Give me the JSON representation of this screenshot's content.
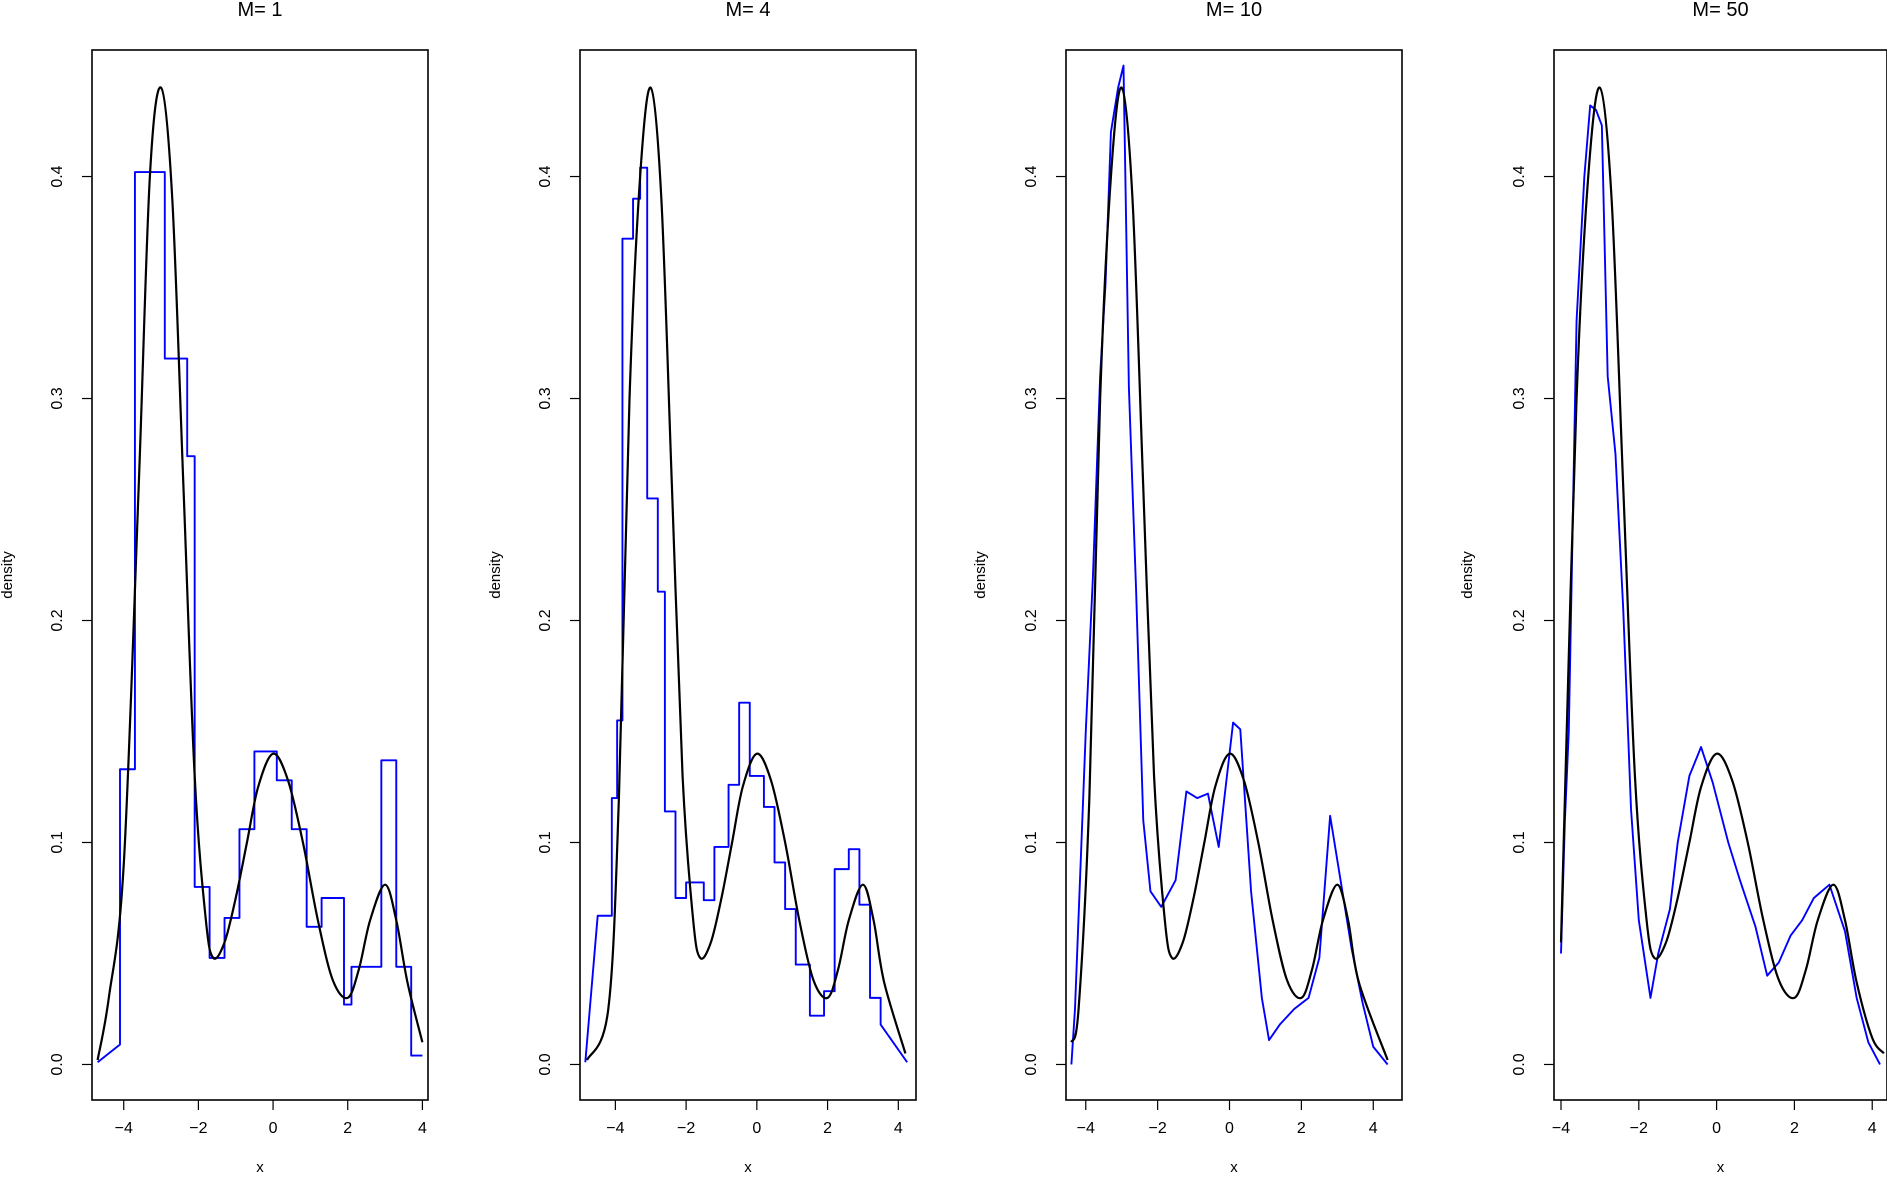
{
  "chart_data": [
    {
      "type": "line",
      "title": "M= 1",
      "xlabel": "x",
      "ylabel": "density",
      "xlim": [
        -4.85,
        4.15
      ],
      "ylim": [
        -0.016,
        0.457
      ],
      "xticks": [
        -4,
        -2,
        0,
        2,
        4
      ],
      "yticks": [
        0.0,
        0.1,
        0.2,
        0.3,
        0.4
      ],
      "x_tick_labels": [
        "−4",
        "−2",
        "0",
        "2",
        "4"
      ],
      "y_tick_labels": [
        "0.0",
        "0.1",
        "0.2",
        "0.3",
        "0.4"
      ],
      "grid": false,
      "colors": {
        "true_density": "#000000",
        "estimate": "#0000ff"
      },
      "series": [
        {
          "style": "step",
          "x": [
            -4.7,
            -4.1,
            -4.1,
            -3.7,
            -3.7,
            -3.3,
            -3.3,
            -2.9,
            -2.9,
            -2.7,
            -2.7,
            -2.3,
            -2.3,
            -2.1,
            -2.1,
            -1.7,
            -1.7,
            -1.3,
            -1.3,
            -0.9,
            -0.9,
            -0.5,
            -0.5,
            0.1,
            0.1,
            0.5,
            0.5,
            0.9,
            0.9,
            1.3,
            1.3,
            1.9,
            1.9,
            2.1,
            2.1,
            2.9,
            2.9,
            3.3,
            3.3,
            3.7,
            3.7,
            4.0
          ],
          "y": [
            0.001,
            0.009,
            0.133,
            0.133,
            0.402,
            0.402,
            0.402,
            0.402,
            0.318,
            0.318,
            0.318,
            0.318,
            0.274,
            0.274,
            0.08,
            0.08,
            0.048,
            0.048,
            0.066,
            0.066,
            0.106,
            0.106,
            0.141,
            0.141,
            0.128,
            0.128,
            0.106,
            0.106,
            0.062,
            0.062,
            0.075,
            0.075,
            0.027,
            0.027,
            0.044,
            0.044,
            0.137,
            0.137,
            0.044,
            0.044,
            0.004,
            0.004
          ]
        },
        {
          "style": "smooth",
          "x": [
            -4.7,
            -4.4,
            -4.0,
            -3.6,
            -3.3,
            -3.0,
            -2.7,
            -2.4,
            -2.1,
            -1.8,
            -1.6,
            -1.3,
            -1.0,
            -0.7,
            -0.4,
            0.0,
            0.4,
            0.8,
            1.2,
            1.6,
            2.0,
            2.3,
            2.6,
            3.0,
            3.3,
            3.6,
            4.0
          ],
          "y": [
            0.002,
            0.03,
            0.09,
            0.26,
            0.4,
            0.44,
            0.39,
            0.26,
            0.13,
            0.065,
            0.048,
            0.055,
            0.075,
            0.1,
            0.125,
            0.14,
            0.128,
            0.1,
            0.065,
            0.038,
            0.03,
            0.043,
            0.065,
            0.081,
            0.065,
            0.037,
            0.01
          ]
        }
      ]
    },
    {
      "type": "line",
      "title": "M= 4",
      "xlabel": "x",
      "ylabel": "density",
      "xlim": [
        -5.0,
        4.5
      ],
      "ylim": [
        -0.016,
        0.457
      ],
      "xticks": [
        -4,
        -2,
        0,
        2,
        4
      ],
      "yticks": [
        0.0,
        0.1,
        0.2,
        0.3,
        0.4
      ],
      "x_tick_labels": [
        "−4",
        "−2",
        "0",
        "2",
        "4"
      ],
      "y_tick_labels": [
        "0.0",
        "0.1",
        "0.2",
        "0.3",
        "0.4"
      ],
      "grid": false,
      "colors": {
        "true_density": "#000000",
        "estimate": "#0000ff"
      },
      "series": [
        {
          "style": "step",
          "x": [
            -4.85,
            -4.5,
            -4.5,
            -4.1,
            -4.1,
            -3.95,
            -3.95,
            -3.8,
            -3.8,
            -3.5,
            -3.5,
            -3.3,
            -3.3,
            -3.1,
            -3.1,
            -2.8,
            -2.8,
            -2.6,
            -2.6,
            -2.3,
            -2.3,
            -2.0,
            -2.0,
            -1.5,
            -1.5,
            -1.2,
            -1.2,
            -0.8,
            -0.8,
            -0.5,
            -0.5,
            -0.2,
            -0.2,
            0.2,
            0.2,
            0.5,
            0.5,
            0.8,
            0.8,
            1.1,
            1.1,
            1.5,
            1.5,
            1.9,
            1.9,
            2.2,
            2.2,
            2.6,
            2.6,
            2.9,
            2.9,
            3.2,
            3.2,
            3.5,
            3.5,
            4.25
          ],
          "y": [
            0.001,
            0.067,
            0.067,
            0.067,
            0.12,
            0.12,
            0.155,
            0.155,
            0.372,
            0.372,
            0.39,
            0.39,
            0.404,
            0.404,
            0.255,
            0.255,
            0.213,
            0.213,
            0.114,
            0.114,
            0.075,
            0.075,
            0.082,
            0.082,
            0.074,
            0.074,
            0.098,
            0.098,
            0.126,
            0.126,
            0.163,
            0.163,
            0.13,
            0.13,
            0.116,
            0.116,
            0.091,
            0.091,
            0.07,
            0.07,
            0.045,
            0.045,
            0.022,
            0.022,
            0.033,
            0.033,
            0.088,
            0.088,
            0.097,
            0.097,
            0.072,
            0.072,
            0.03,
            0.03,
            0.018,
            0.001
          ]
        },
        {
          "style": "smooth",
          "x": [
            -4.8,
            -4.2,
            -3.9,
            -3.6,
            -3.3,
            -3.0,
            -2.7,
            -2.4,
            -2.1,
            -1.8,
            -1.6,
            -1.3,
            -1.0,
            -0.7,
            -0.4,
            0.0,
            0.4,
            0.8,
            1.2,
            1.6,
            2.0,
            2.3,
            2.6,
            3.0,
            3.3,
            3.6,
            4.2
          ],
          "y": [
            0.002,
            0.025,
            0.12,
            0.3,
            0.4,
            0.44,
            0.39,
            0.26,
            0.13,
            0.065,
            0.048,
            0.055,
            0.075,
            0.1,
            0.125,
            0.14,
            0.128,
            0.1,
            0.065,
            0.038,
            0.03,
            0.043,
            0.065,
            0.081,
            0.065,
            0.037,
            0.005
          ]
        }
      ]
    },
    {
      "type": "line",
      "title": "M= 10",
      "xlabel": "x",
      "ylabel": "density",
      "xlim": [
        -4.55,
        4.8
      ],
      "ylim": [
        -0.016,
        0.457
      ],
      "xticks": [
        -4,
        -2,
        0,
        2,
        4
      ],
      "yticks": [
        0.0,
        0.1,
        0.2,
        0.3,
        0.4
      ],
      "x_tick_labels": [
        "−4",
        "−2",
        "0",
        "2",
        "4"
      ],
      "y_tick_labels": [
        "0.0",
        "0.1",
        "0.2",
        "0.3",
        "0.4"
      ],
      "grid": false,
      "colors": {
        "true_density": "#000000",
        "estimate": "#0000ff"
      },
      "series": [
        {
          "style": "step",
          "x": [
            -4.4,
            -4.3,
            -4.3,
            -4.0,
            -4.0,
            -3.8,
            -3.8,
            -3.6,
            -3.6,
            -3.45,
            -3.45,
            -3.3,
            -3.3,
            -3.1,
            -3.1,
            -2.95,
            -2.95,
            -2.8,
            -2.8,
            -2.6,
            -2.6,
            -2.4,
            -2.4,
            -2.2,
            -2.2,
            -1.9,
            -1.9,
            -1.5,
            -1.5,
            -1.2,
            -1.2,
            -0.9,
            -0.9,
            -0.6,
            -0.6,
            -0.3,
            -0.3,
            0.1,
            0.1,
            0.3,
            0.3,
            0.6,
            0.6,
            0.9,
            0.9,
            1.1,
            1.1,
            1.4,
            1.4,
            1.8,
            1.8,
            2.2,
            2.2,
            2.5,
            2.5,
            2.8,
            2.8,
            3.1,
            3.1,
            3.4,
            3.4,
            3.7,
            3.7,
            4.0,
            4.0,
            4.4
          ],
          "y": [
            0.0,
            0.025,
            0.025,
            0.15,
            0.15,
            0.22,
            0.22,
            0.31,
            0.31,
            0.352,
            0.352,
            0.42,
            0.42,
            0.44,
            0.44,
            0.45,
            0.45,
            0.305,
            0.305,
            0.214,
            0.214,
            0.11,
            0.11,
            0.078,
            0.078,
            0.071,
            0.071,
            0.083,
            0.083,
            0.123,
            0.123,
            0.12,
            0.12,
            0.122,
            0.122,
            0.098,
            0.098,
            0.154,
            0.154,
            0.151,
            0.151,
            0.078,
            0.078,
            0.03,
            0.03,
            0.011,
            0.011,
            0.018,
            0.018,
            0.025,
            0.025,
            0.03,
            0.03,
            0.048,
            0.048,
            0.112,
            0.112,
            0.082,
            0.082,
            0.052,
            0.052,
            0.028,
            0.028,
            0.008,
            0.008,
            0.0
          ]
        },
        {
          "style": "smooth",
          "x": [
            -4.4,
            -4.2,
            -3.9,
            -3.6,
            -3.3,
            -3.0,
            -2.7,
            -2.4,
            -2.1,
            -1.8,
            -1.6,
            -1.3,
            -1.0,
            -0.7,
            -0.4,
            0.0,
            0.4,
            0.8,
            1.2,
            1.6,
            2.0,
            2.3,
            2.6,
            3.0,
            3.3,
            3.6,
            4.4
          ],
          "y": [
            0.01,
            0.025,
            0.12,
            0.3,
            0.4,
            0.44,
            0.39,
            0.26,
            0.13,
            0.065,
            0.048,
            0.055,
            0.075,
            0.1,
            0.125,
            0.14,
            0.128,
            0.1,
            0.065,
            0.038,
            0.03,
            0.043,
            0.065,
            0.081,
            0.065,
            0.037,
            0.002
          ]
        }
      ]
    },
    {
      "type": "line",
      "title": "M= 50",
      "xlabel": "x",
      "ylabel": "density",
      "xlim": [
        -4.18,
        4.38
      ],
      "ylim": [
        -0.016,
        0.457
      ],
      "xticks": [
        -4,
        -2,
        0,
        2,
        4
      ],
      "yticks": [
        0.0,
        0.1,
        0.2,
        0.3,
        0.4
      ],
      "x_tick_labels": [
        "−4",
        "−2",
        "0",
        "2",
        "4"
      ],
      "y_tick_labels": [
        "0.0",
        "0.1",
        "0.2",
        "0.3",
        "0.4"
      ],
      "grid": false,
      "colors": {
        "true_density": "#000000",
        "estimate": "#0000ff"
      },
      "series": [
        {
          "style": "step",
          "x": [
            -4.0,
            -3.9,
            -3.9,
            -3.8,
            -3.8,
            -3.6,
            -3.6,
            -3.4,
            -3.4,
            -3.25,
            -3.25,
            -3.1,
            -3.1,
            -2.95,
            -2.95,
            -2.8,
            -2.8,
            -2.6,
            -2.6,
            -2.4,
            -2.4,
            -2.2,
            -2.2,
            -2.0,
            -2.0,
            -1.7,
            -1.7,
            -1.5,
            -1.5,
            -1.2,
            -1.2,
            -1.0,
            -1.0,
            -0.7,
            -0.7,
            -0.4,
            -0.4,
            -0.1,
            -0.1,
            0.3,
            0.3,
            0.6,
            0.6,
            1.0,
            1.0,
            1.3,
            1.3,
            1.6,
            1.6,
            1.9,
            1.9,
            2.2,
            2.2,
            2.5,
            2.5,
            2.9,
            2.9,
            3.3,
            3.3,
            3.6,
            3.6,
            3.9,
            3.9,
            4.2
          ],
          "y": [
            0.05,
            0.11,
            0.11,
            0.15,
            0.15,
            0.335,
            0.335,
            0.4,
            0.4,
            0.432,
            0.432,
            0.43,
            0.43,
            0.423,
            0.423,
            0.31,
            0.31,
            0.275,
            0.275,
            0.205,
            0.205,
            0.115,
            0.115,
            0.065,
            0.065,
            0.03,
            0.03,
            0.05,
            0.05,
            0.07,
            0.07,
            0.1,
            0.1,
            0.13,
            0.13,
            0.143,
            0.143,
            0.127,
            0.127,
            0.1,
            0.1,
            0.083,
            0.083,
            0.062,
            0.062,
            0.04,
            0.04,
            0.046,
            0.046,
            0.058,
            0.058,
            0.065,
            0.065,
            0.075,
            0.075,
            0.081,
            0.081,
            0.06,
            0.06,
            0.03,
            0.03,
            0.01,
            0.01,
            0.0
          ]
        },
        {
          "style": "smooth",
          "x": [
            -4.0,
            -3.9,
            -3.6,
            -3.3,
            -3.0,
            -2.7,
            -2.4,
            -2.1,
            -1.8,
            -1.6,
            -1.3,
            -1.0,
            -0.7,
            -0.4,
            0.0,
            0.4,
            0.8,
            1.2,
            1.6,
            2.0,
            2.3,
            2.6,
            3.0,
            3.3,
            3.6,
            4.0,
            4.3
          ],
          "y": [
            0.055,
            0.12,
            0.3,
            0.4,
            0.44,
            0.39,
            0.26,
            0.13,
            0.065,
            0.048,
            0.055,
            0.075,
            0.1,
            0.125,
            0.14,
            0.128,
            0.1,
            0.065,
            0.038,
            0.03,
            0.043,
            0.065,
            0.081,
            0.065,
            0.037,
            0.012,
            0.005
          ]
        }
      ]
    }
  ]
}
